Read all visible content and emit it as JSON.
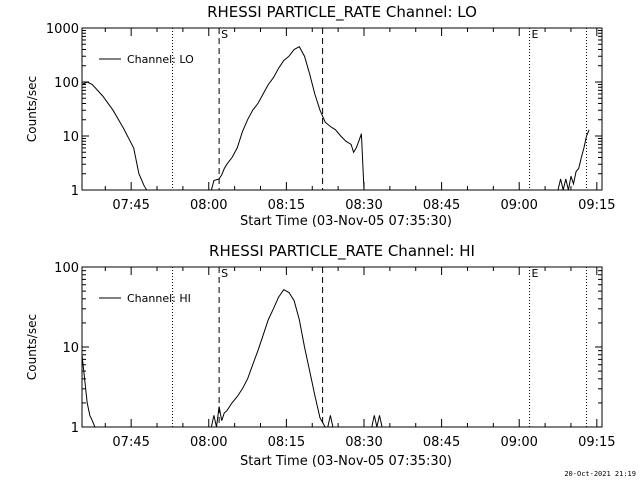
{
  "footer_timestamp": "20-Oct-2021 21:19",
  "chart_data": [
    {
      "type": "line",
      "title": "RHESSI PARTICLE_RATE Channel: LO",
      "xlabel": "Start Time (03-Nov-05 07:35:30)",
      "ylabel": "Counts/sec",
      "yscale": "log",
      "ylim": [
        1,
        1000
      ],
      "ytick_labels": [
        "1",
        "10",
        "100",
        "1000"
      ],
      "ytick_values": [
        1,
        10,
        100,
        1000
      ],
      "xlim": [
        0,
        100.5
      ],
      "xtick_labels": [
        "07:45",
        "08:00",
        "08:15",
        "08:30",
        "08:45",
        "09:00",
        "09:15"
      ],
      "xtick_values": [
        9.5,
        24.5,
        39.5,
        54.5,
        69.5,
        84.5,
        99.5
      ],
      "legend": [
        "Channel: LO"
      ],
      "markers": [
        {
          "label": "S",
          "x": 26.5,
          "style": "dashed"
        },
        {
          "label": "",
          "x": 46.5,
          "style": "dashed"
        },
        {
          "label": "",
          "x": 17.5,
          "style": "dotted"
        },
        {
          "label": "E",
          "x": 86.5,
          "style": "dotted"
        },
        {
          "label": "",
          "x": 97.5,
          "style": "dotted"
        }
      ],
      "series": [
        {
          "name": "Channel: LO",
          "x": [
            0,
            1,
            2,
            4,
            6,
            8,
            10,
            11,
            12,
            12.5
          ],
          "y": [
            90,
            100,
            90,
            55,
            30,
            14,
            6,
            2,
            1.2,
            1
          ]
        },
        {
          "name": "Channel: LO",
          "x": [
            25,
            25.5,
            26.5,
            27,
            27.5,
            28,
            29,
            30,
            31,
            32,
            33,
            34,
            35,
            36,
            37,
            38,
            39,
            40,
            41,
            42,
            43,
            44,
            45,
            46,
            47,
            48,
            49,
            50,
            51,
            52,
            52.5,
            53,
            53.5,
            54,
            54.5
          ],
          "y": [
            1,
            1.5,
            1.6,
            1.9,
            2.5,
            3,
            4,
            6,
            12,
            20,
            30,
            40,
            60,
            90,
            120,
            180,
            250,
            300,
            400,
            450,
            300,
            140,
            60,
            30,
            18,
            15,
            13,
            10,
            8,
            7,
            5,
            6,
            8,
            11,
            1
          ]
        },
        {
          "name": "Channel: LO",
          "x": [
            92,
            92.5,
            93,
            93.5,
            94,
            94.5,
            95,
            95.5,
            96,
            96.5,
            97,
            97.5,
            98
          ],
          "y": [
            1,
            1.6,
            1,
            1.6,
            1,
            1.8,
            1.3,
            2.2,
            2.5,
            4,
            6,
            10,
            13
          ]
        }
      ]
    },
    {
      "type": "line",
      "title": "RHESSI PARTICLE_RATE Channel: HI",
      "xlabel": "Start Time (03-Nov-05 07:35:30)",
      "ylabel": "Counts/sec",
      "yscale": "log",
      "ylim": [
        1,
        100
      ],
      "ytick_labels": [
        "1",
        "10",
        "100"
      ],
      "ytick_values": [
        1,
        10,
        100
      ],
      "xlim": [
        0,
        100.5
      ],
      "xtick_labels": [
        "07:45",
        "08:00",
        "08:15",
        "08:30",
        "08:45",
        "09:00",
        "09:15"
      ],
      "xtick_values": [
        9.5,
        24.5,
        39.5,
        54.5,
        69.5,
        84.5,
        99.5
      ],
      "legend": [
        "Channel: HI"
      ],
      "markers": [
        {
          "label": "S",
          "x": 26.5,
          "style": "dashed"
        },
        {
          "label": "",
          "x": 46.5,
          "style": "dashed"
        },
        {
          "label": "",
          "x": 17.5,
          "style": "dotted"
        },
        {
          "label": "E",
          "x": 86.5,
          "style": "dotted"
        },
        {
          "label": "",
          "x": 97.5,
          "style": "dotted"
        }
      ],
      "series": [
        {
          "name": "Channel: HI",
          "x": [
            0,
            0.5,
            1,
            1.5,
            2,
            2.5
          ],
          "y": [
            8,
            4,
            2,
            1.4,
            1.2,
            1
          ]
        },
        {
          "name": "Channel: HI",
          "x": [
            25,
            25.5,
            26,
            26.5,
            27,
            27.5,
            28,
            29,
            30,
            31,
            32,
            33,
            34,
            35,
            36,
            37,
            38,
            39,
            40,
            41,
            42,
            43,
            44,
            45,
            46,
            47
          ],
          "y": [
            1,
            1.4,
            1,
            1.8,
            1.2,
            1.5,
            1.6,
            2,
            2.4,
            3,
            4,
            6,
            9,
            14,
            22,
            30,
            42,
            52,
            48,
            38,
            22,
            10,
            5,
            2.5,
            1.3,
            1
          ]
        },
        {
          "name": "Channel: HI",
          "x": [
            47.5,
            48,
            48.5
          ],
          "y": [
            1,
            1.4,
            1
          ]
        },
        {
          "name": "Channel: HI",
          "x": [
            56,
            56.5,
            57,
            57.5,
            58
          ],
          "y": [
            1,
            1.4,
            1,
            1.4,
            1
          ]
        }
      ]
    }
  ]
}
